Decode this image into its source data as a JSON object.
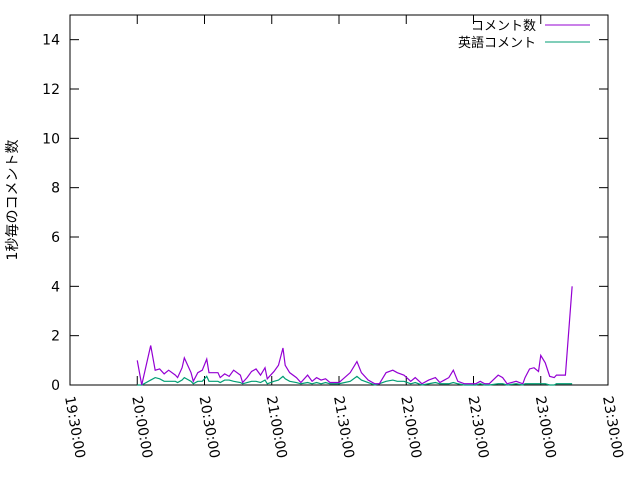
{
  "chart_data": {
    "type": "line",
    "title": "",
    "xlabel": "",
    "ylabel": "1秒毎のコメント数",
    "xlim": [
      "19:30:00",
      "23:30:00"
    ],
    "ylim": [
      0,
      15
    ],
    "xticks": [
      "19:30:00",
      "20:00:00",
      "20:30:00",
      "21:00:00",
      "21:30:00",
      "22:00:00",
      "22:30:00",
      "23:00:00",
      "23:30:00"
    ],
    "yticks": [
      0,
      2,
      4,
      6,
      8,
      10,
      12,
      14
    ],
    "grid": false,
    "legend": "top-right",
    "x": [
      "20:00",
      "20:02",
      "20:06",
      "20:08",
      "20:10",
      "20:12",
      "20:14",
      "20:17",
      "20:18",
      "20:20",
      "20:21",
      "20:24",
      "20:25",
      "20:27",
      "20:29",
      "20:31",
      "20:32",
      "20:36",
      "20:37",
      "20:39",
      "20:41",
      "20:43",
      "20:46",
      "20:47",
      "20:49",
      "20:51",
      "20:53",
      "20:55",
      "20:57",
      "20:58",
      "21:01",
      "21:03",
      "21:05",
      "21:06",
      "21:08",
      "21:11",
      "21:13",
      "21:16",
      "21:18",
      "21:20",
      "21:22",
      "21:24",
      "21:26",
      "21:30",
      "21:35",
      "21:38",
      "21:40",
      "21:43",
      "21:46",
      "21:48",
      "21:51",
      "21:54",
      "21:56",
      "21:59",
      "22:02",
      "22:04",
      "22:07",
      "22:10",
      "22:13",
      "22:15",
      "22:17",
      "22:19",
      "22:21",
      "22:23",
      "22:26",
      "22:31",
      "22:33",
      "22:35",
      "22:37",
      "22:41",
      "22:43",
      "22:45",
      "22:49",
      "22:52",
      "22:53",
      "22:55",
      "22:57",
      "22:59",
      "23:00",
      "23:02",
      "23:04",
      "23:06",
      "23:07",
      "23:11",
      "23:14"
    ],
    "series": [
      {
        "name": "コメント数",
        "color": "#9400d3",
        "values": [
          1.0,
          0.0,
          1.6,
          0.6,
          0.65,
          0.45,
          0.6,
          0.4,
          0.3,
          0.7,
          1.1,
          0.5,
          0.15,
          0.5,
          0.6,
          1.05,
          0.5,
          0.5,
          0.3,
          0.45,
          0.35,
          0.6,
          0.4,
          0.1,
          0.3,
          0.55,
          0.65,
          0.4,
          0.7,
          0.25,
          0.55,
          0.8,
          1.5,
          0.8,
          0.5,
          0.3,
          0.1,
          0.4,
          0.15,
          0.3,
          0.2,
          0.25,
          0.1,
          0.1,
          0.5,
          0.95,
          0.5,
          0.2,
          0.05,
          0.05,
          0.5,
          0.6,
          0.5,
          0.4,
          0.15,
          0.3,
          0.05,
          0.2,
          0.3,
          0.1,
          0.2,
          0.3,
          0.6,
          0.15,
          0.05,
          0.05,
          0.15,
          0.05,
          0.05,
          0.4,
          0.3,
          0.05,
          0.15,
          0.05,
          0.3,
          0.65,
          0.7,
          0.55,
          1.2,
          0.9,
          0.35,
          0.3,
          0.4,
          0.4,
          4.0
        ]
      },
      {
        "name": "英語コメント",
        "color": "#009e73",
        "values": [
          0.0,
          0.0,
          0.2,
          0.3,
          0.25,
          0.15,
          0.15,
          0.15,
          0.1,
          0.2,
          0.3,
          0.15,
          0.05,
          0.15,
          0.15,
          0.35,
          0.15,
          0.15,
          0.1,
          0.2,
          0.2,
          0.15,
          0.1,
          0.05,
          0.1,
          0.15,
          0.15,
          0.1,
          0.2,
          0.05,
          0.15,
          0.2,
          0.35,
          0.25,
          0.15,
          0.1,
          0.05,
          0.1,
          0.05,
          0.1,
          0.05,
          0.1,
          0.05,
          0.05,
          0.15,
          0.35,
          0.2,
          0.1,
          0.0,
          0.05,
          0.15,
          0.2,
          0.15,
          0.15,
          0.05,
          0.1,
          0.0,
          0.05,
          0.1,
          0.05,
          0.05,
          0.05,
          0.1,
          0.05,
          0.0,
          0.0,
          0.05,
          0.0,
          0.0,
          0.05,
          0.05,
          0.0,
          0.05,
          0.0,
          0.05,
          0.05,
          0.05,
          0.05,
          0.05,
          0.05,
          0.0,
          0.0,
          0.05,
          0.05,
          0.05
        ]
      }
    ]
  }
}
